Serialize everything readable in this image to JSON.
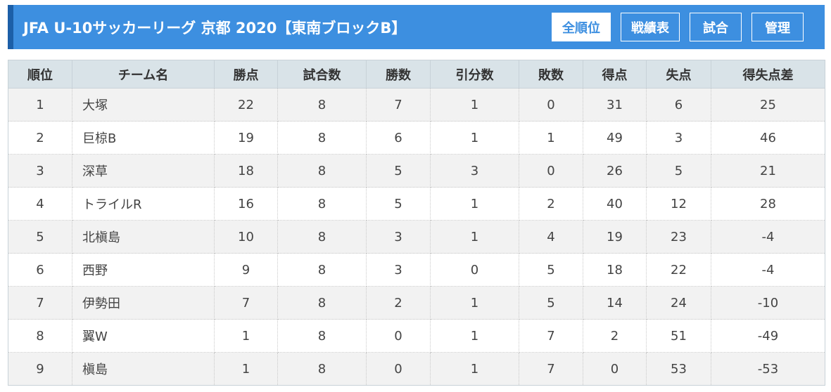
{
  "header": {
    "title": "JFA U-10サッカーリーグ 京都 2020【東南ブロックB】",
    "nav": [
      {
        "label": "全順位"
      },
      {
        "label": "戦績表"
      },
      {
        "label": "試合"
      },
      {
        "label": "管理"
      }
    ]
  },
  "table": {
    "columns": [
      "順位",
      "チーム名",
      "勝点",
      "試合数",
      "勝数",
      "引分数",
      "敗数",
      "得点",
      "失点",
      "得失点差"
    ],
    "rows": [
      [
        "1",
        "大塚",
        "22",
        "8",
        "7",
        "1",
        "0",
        "31",
        "6",
        "25"
      ],
      [
        "2",
        "巨椋B",
        "19",
        "8",
        "6",
        "1",
        "1",
        "49",
        "3",
        "46"
      ],
      [
        "3",
        "深草",
        "18",
        "8",
        "5",
        "3",
        "0",
        "26",
        "5",
        "21"
      ],
      [
        "4",
        "トライルR",
        "16",
        "8",
        "5",
        "1",
        "2",
        "40",
        "12",
        "28"
      ],
      [
        "5",
        "北槇島",
        "10",
        "8",
        "3",
        "1",
        "4",
        "19",
        "23",
        "-4"
      ],
      [
        "6",
        "西野",
        "9",
        "8",
        "3",
        "0",
        "5",
        "18",
        "22",
        "-4"
      ],
      [
        "7",
        "伊勢田",
        "7",
        "8",
        "2",
        "1",
        "5",
        "14",
        "24",
        "-10"
      ],
      [
        "8",
        "翼W",
        "1",
        "8",
        "0",
        "1",
        "7",
        "2",
        "51",
        "-49"
      ],
      [
        "9",
        "槇島",
        "1",
        "8",
        "0",
        "1",
        "7",
        "0",
        "53",
        "-53"
      ]
    ]
  },
  "colors": {
    "header_bg": "#3d8fe0",
    "header_accent": "#1c5fa8",
    "table_header_bg": "#d9e3e8",
    "row_alt_bg": "#f2f2f2"
  }
}
